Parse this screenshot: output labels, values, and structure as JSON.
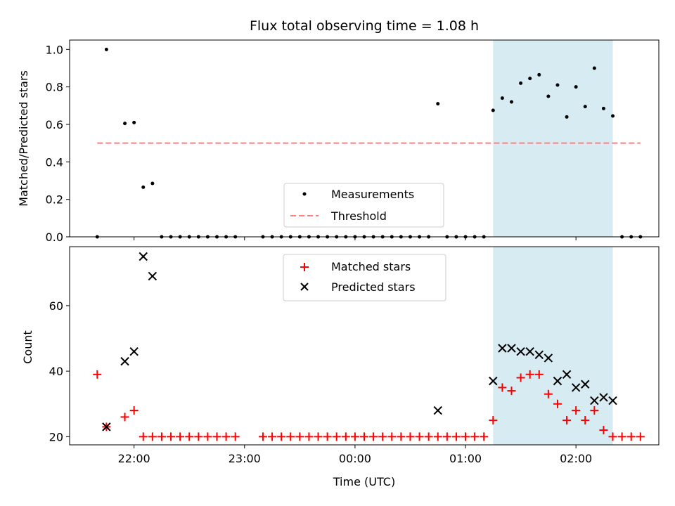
{
  "chart_data": [
    {
      "type": "scatter",
      "title": "Flux total observing time = 1.08 h",
      "ylabel": "Matched/Predicted stars",
      "xlabel": "",
      "xlim": [
        "21:25",
        "02:45"
      ],
      "ylim": [
        0,
        1.05
      ],
      "y_ticks": [
        "0.0",
        "0.2",
        "0.4",
        "0.6",
        "0.8",
        "1.0"
      ],
      "x_ticks": [
        "22:00",
        "23:00",
        "00:00",
        "01:00",
        "02:00"
      ],
      "shaded_region": {
        "x_start": "01:15",
        "x_end": "02:20",
        "color": "#add8e6"
      },
      "legend_location": "lower center",
      "series": [
        {
          "name": "Measurements",
          "marker": "dot",
          "color": "#000000",
          "points": [
            {
              "x": "21:40",
              "y": 0.0
            },
            {
              "x": "21:45",
              "y": 1.0
            },
            {
              "x": "21:55",
              "y": 0.605
            },
            {
              "x": "22:00",
              "y": 0.61
            },
            {
              "x": "22:05",
              "y": 0.265
            },
            {
              "x": "22:10",
              "y": 0.285
            },
            {
              "x": "22:15",
              "y": 0.0
            },
            {
              "x": "22:20",
              "y": 0.0
            },
            {
              "x": "22:25",
              "y": 0.0
            },
            {
              "x": "22:30",
              "y": 0.0
            },
            {
              "x": "22:35",
              "y": 0.0
            },
            {
              "x": "22:40",
              "y": 0.0
            },
            {
              "x": "22:45",
              "y": 0.0
            },
            {
              "x": "22:50",
              "y": 0.0
            },
            {
              "x": "22:55",
              "y": 0.0
            },
            {
              "x": "23:10",
              "y": 0.0
            },
            {
              "x": "23:15",
              "y": 0.0
            },
            {
              "x": "23:20",
              "y": 0.0
            },
            {
              "x": "23:25",
              "y": 0.0
            },
            {
              "x": "23:30",
              "y": 0.0
            },
            {
              "x": "23:35",
              "y": 0.0
            },
            {
              "x": "23:40",
              "y": 0.0
            },
            {
              "x": "23:45",
              "y": 0.0
            },
            {
              "x": "23:50",
              "y": 0.0
            },
            {
              "x": "23:55",
              "y": 0.0
            },
            {
              "x": "00:00",
              "y": 0.0
            },
            {
              "x": "00:05",
              "y": 0.0
            },
            {
              "x": "00:10",
              "y": 0.0
            },
            {
              "x": "00:15",
              "y": 0.0
            },
            {
              "x": "00:20",
              "y": 0.0
            },
            {
              "x": "00:25",
              "y": 0.0
            },
            {
              "x": "00:30",
              "y": 0.0
            },
            {
              "x": "00:35",
              "y": 0.0
            },
            {
              "x": "00:40",
              "y": 0.0
            },
            {
              "x": "00:45",
              "y": 0.71
            },
            {
              "x": "00:50",
              "y": 0.0
            },
            {
              "x": "00:55",
              "y": 0.0
            },
            {
              "x": "01:00",
              "y": 0.0
            },
            {
              "x": "01:05",
              "y": 0.0
            },
            {
              "x": "01:10",
              "y": 0.0
            },
            {
              "x": "01:15",
              "y": 0.675
            },
            {
              "x": "01:20",
              "y": 0.74
            },
            {
              "x": "01:25",
              "y": 0.72
            },
            {
              "x": "01:30",
              "y": 0.82
            },
            {
              "x": "01:35",
              "y": 0.845
            },
            {
              "x": "01:40",
              "y": 0.865
            },
            {
              "x": "01:45",
              "y": 0.75
            },
            {
              "x": "01:50",
              "y": 0.81
            },
            {
              "x": "01:55",
              "y": 0.64
            },
            {
              "x": "02:00",
              "y": 0.8
            },
            {
              "x": "02:05",
              "y": 0.695
            },
            {
              "x": "02:10",
              "y": 0.9
            },
            {
              "x": "02:15",
              "y": 0.685
            },
            {
              "x": "02:20",
              "y": 0.645
            },
            {
              "x": "02:25",
              "y": 0.0
            },
            {
              "x": "02:30",
              "y": 0.0
            },
            {
              "x": "02:35",
              "y": 0.0
            }
          ]
        },
        {
          "name": "Threshold",
          "type": "line",
          "style": "dashed",
          "color": "#ff7f7f",
          "points": [
            {
              "x": "21:40",
              "y": 0.5
            },
            {
              "x": "02:35",
              "y": 0.5
            }
          ]
        }
      ]
    },
    {
      "type": "scatter",
      "title": "",
      "ylabel": "Count",
      "xlabel": "Time (UTC)",
      "xlim": [
        "21:25",
        "02:45"
      ],
      "ylim": [
        17.5,
        78
      ],
      "y_ticks": [
        "20",
        "40",
        "60"
      ],
      "x_ticks": [
        "22:00",
        "23:00",
        "00:00",
        "01:00",
        "02:00"
      ],
      "shaded_region": {
        "x_start": "01:15",
        "x_end": "02:20",
        "color": "#add8e6"
      },
      "legend_location": "upper center",
      "series": [
        {
          "name": "Matched stars",
          "marker": "plus",
          "color": "#ff0000",
          "points": [
            {
              "x": "21:40",
              "y": 39
            },
            {
              "x": "21:45",
              "y": 23
            },
            {
              "x": "21:55",
              "y": 26
            },
            {
              "x": "22:00",
              "y": 28
            },
            {
              "x": "22:05",
              "y": 20
            },
            {
              "x": "22:10",
              "y": 20
            },
            {
              "x": "22:15",
              "y": 20
            },
            {
              "x": "22:20",
              "y": 20
            },
            {
              "x": "22:25",
              "y": 20
            },
            {
              "x": "22:30",
              "y": 20
            },
            {
              "x": "22:35",
              "y": 20
            },
            {
              "x": "22:40",
              "y": 20
            },
            {
              "x": "22:45",
              "y": 20
            },
            {
              "x": "22:50",
              "y": 20
            },
            {
              "x": "22:55",
              "y": 20
            },
            {
              "x": "23:10",
              "y": 20
            },
            {
              "x": "23:15",
              "y": 20
            },
            {
              "x": "23:20",
              "y": 20
            },
            {
              "x": "23:25",
              "y": 20
            },
            {
              "x": "23:30",
              "y": 20
            },
            {
              "x": "23:35",
              "y": 20
            },
            {
              "x": "23:40",
              "y": 20
            },
            {
              "x": "23:45",
              "y": 20
            },
            {
              "x": "23:50",
              "y": 20
            },
            {
              "x": "23:55",
              "y": 20
            },
            {
              "x": "00:00",
              "y": 20
            },
            {
              "x": "00:05",
              "y": 20
            },
            {
              "x": "00:10",
              "y": 20
            },
            {
              "x": "00:15",
              "y": 20
            },
            {
              "x": "00:20",
              "y": 20
            },
            {
              "x": "00:25",
              "y": 20
            },
            {
              "x": "00:30",
              "y": 20
            },
            {
              "x": "00:35",
              "y": 20
            },
            {
              "x": "00:40",
              "y": 20
            },
            {
              "x": "00:45",
              "y": 20
            },
            {
              "x": "00:50",
              "y": 20
            },
            {
              "x": "00:55",
              "y": 20
            },
            {
              "x": "01:00",
              "y": 20
            },
            {
              "x": "01:05",
              "y": 20
            },
            {
              "x": "01:10",
              "y": 20
            },
            {
              "x": "01:15",
              "y": 25
            },
            {
              "x": "01:20",
              "y": 35
            },
            {
              "x": "01:25",
              "y": 34
            },
            {
              "x": "01:30",
              "y": 38
            },
            {
              "x": "01:35",
              "y": 39
            },
            {
              "x": "01:40",
              "y": 39
            },
            {
              "x": "01:45",
              "y": 33
            },
            {
              "x": "01:50",
              "y": 30
            },
            {
              "x": "01:55",
              "y": 25
            },
            {
              "x": "02:00",
              "y": 28
            },
            {
              "x": "02:05",
              "y": 25
            },
            {
              "x": "02:10",
              "y": 28
            },
            {
              "x": "02:15",
              "y": 22
            },
            {
              "x": "02:20",
              "y": 20
            },
            {
              "x": "02:25",
              "y": 20
            },
            {
              "x": "02:30",
              "y": 20
            },
            {
              "x": "02:35",
              "y": 20
            }
          ]
        },
        {
          "name": "Predicted stars",
          "marker": "cross",
          "color": "#000000",
          "points": [
            {
              "x": "21:45",
              "y": 23
            },
            {
              "x": "21:55",
              "y": 43
            },
            {
              "x": "22:00",
              "y": 46
            },
            {
              "x": "22:05",
              "y": 75
            },
            {
              "x": "22:10",
              "y": 69
            },
            {
              "x": "00:45",
              "y": 28
            },
            {
              "x": "01:15",
              "y": 37
            },
            {
              "x": "01:20",
              "y": 47
            },
            {
              "x": "01:25",
              "y": 47
            },
            {
              "x": "01:30",
              "y": 46
            },
            {
              "x": "01:35",
              "y": 46
            },
            {
              "x": "01:40",
              "y": 45
            },
            {
              "x": "01:45",
              "y": 44
            },
            {
              "x": "01:50",
              "y": 37
            },
            {
              "x": "01:55",
              "y": 39
            },
            {
              "x": "02:00",
              "y": 35
            },
            {
              "x": "02:05",
              "y": 36
            },
            {
              "x": "02:10",
              "y": 31
            },
            {
              "x": "02:15",
              "y": 32
            },
            {
              "x": "02:20",
              "y": 31
            }
          ]
        }
      ]
    }
  ]
}
